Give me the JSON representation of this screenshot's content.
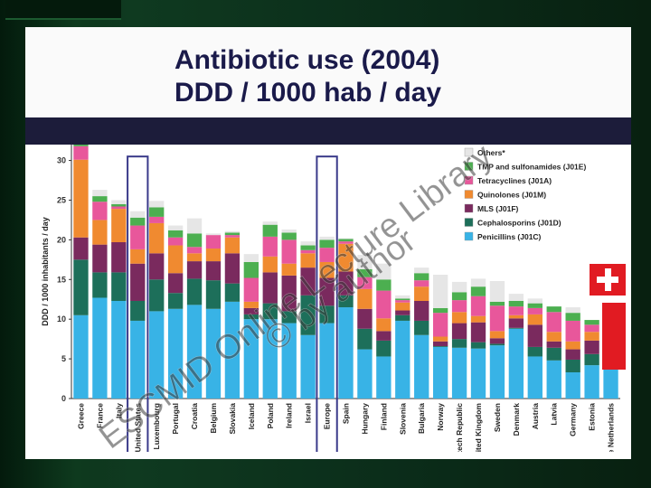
{
  "title": {
    "line1": "Antibiotic use (2004)",
    "line2": "DDD / 1000 hab / day"
  },
  "watermark": {
    "line1": "ESCMID Online Lecture Library",
    "line2": "© by author"
  },
  "colors": {
    "background": "#0b2d1a",
    "title_text": "#1a1a4a",
    "dark_band": "#1c1c3a",
    "highlight_box": "#3a3a8a",
    "flag_red": "#e11b22"
  },
  "chart_data": {
    "type": "bar",
    "stacked": true,
    "ylabel": "DDD / 1000 inhabitants / day",
    "ylim": [
      0,
      32
    ],
    "yticks": [
      0,
      5,
      10,
      15,
      20,
      25,
      30
    ],
    "grid": false,
    "legend_position": "top-right",
    "highlighted_categories": [
      "United States",
      "Europe"
    ],
    "categories": [
      "Greece",
      "France",
      "Italy",
      "United States",
      "Luxembourg",
      "Portugal",
      "Croatia",
      "Belgium",
      "Slovakia",
      "Iceland",
      "Poland",
      "Ireland",
      "Israel",
      "Europe",
      "Spain",
      "Hungary",
      "Finland",
      "Slovenia",
      "Bulgaria",
      "Norway",
      "Czech Republic",
      "United Kingdom",
      "Sweden",
      "Denmark",
      "Austria",
      "Latvia",
      "Germany",
      "Estonia",
      "The Netherlands"
    ],
    "series": [
      {
        "name": "Penicillins (J01C)",
        "color": "#38b3e6",
        "values": [
          10.5,
          12.7,
          12.3,
          9.8,
          11.0,
          11.3,
          11.8,
          11.3,
          12.2,
          10.0,
          10.0,
          9.5,
          8.0,
          9.5,
          11.5,
          6.2,
          5.3,
          9.8,
          8.0,
          6.5,
          6.4,
          6.3,
          6.7,
          8.8,
          5.3,
          4.8,
          3.3,
          4.2,
          3.7
        ]
      },
      {
        "name": "Cephalosporins (J01D)",
        "color": "#1d6f5a",
        "values": [
          7.0,
          3.2,
          3.6,
          2.5,
          4.0,
          2.0,
          3.3,
          3.6,
          2.3,
          0.6,
          2.0,
          1.5,
          5.0,
          2.2,
          1.5,
          2.6,
          2.0,
          0.7,
          1.8,
          0.1,
          1.1,
          0.8,
          0.2,
          0.1,
          1.2,
          1.6,
          1.6,
          1.4,
          0.2
        ]
      },
      {
        "name": "MLS (J01F)",
        "color": "#7a2a5e",
        "values": [
          2.8,
          3.5,
          3.8,
          4.7,
          3.3,
          2.5,
          2.2,
          2.4,
          3.8,
          0.8,
          3.9,
          4.5,
          3.5,
          3.5,
          3.0,
          2.5,
          1.2,
          0.6,
          2.5,
          0.6,
          2.0,
          2.5,
          0.7,
          1.2,
          2.8,
          0.8,
          1.3,
          1.7,
          1.4
        ]
      },
      {
        "name": "Quinolones (J01M)",
        "color": "#f08a30",
        "values": [
          9.8,
          3.1,
          4.2,
          1.8,
          3.8,
          3.5,
          1.0,
          1.6,
          2.0,
          0.8,
          2.0,
          1.5,
          1.8,
          2.0,
          3.5,
          2.5,
          1.6,
          1.0,
          1.8,
          0.6,
          1.4,
          0.8,
          0.9,
          0.4,
          1.3,
          1.2,
          1.0,
          1.1,
          0.8
        ]
      },
      {
        "name": "Tetracyclines (J01A)",
        "color": "#e8579b",
        "values": [
          1.7,
          2.3,
          0.3,
          3.0,
          0.8,
          1.0,
          0.8,
          1.7,
          0.3,
          3.0,
          2.5,
          3.0,
          0.4,
          1.8,
          0.3,
          1.5,
          3.5,
          0.3,
          0.8,
          3.0,
          1.5,
          2.5,
          3.2,
          1.1,
          0.8,
          2.5,
          2.6,
          0.9,
          1.6
        ]
      },
      {
        "name": "TMP and sulfonamides (J01E)",
        "color": "#4caf50",
        "values": [
          0.6,
          0.7,
          0.3,
          1.0,
          1.2,
          0.9,
          1.7,
          0.0,
          0.3,
          2.0,
          1.5,
          0.9,
          0.6,
          1.0,
          0.3,
          1.0,
          1.4,
          0.2,
          0.9,
          0.6,
          1.0,
          1.2,
          0.5,
          0.7,
          0.6,
          0.7,
          1.0,
          0.6,
          0.8
        ]
      },
      {
        "name": "Others*",
        "color": "#e6e6e6",
        "values": [
          0.0,
          0.8,
          0.5,
          0.8,
          0.8,
          0.6,
          1.9,
          0.2,
          0.2,
          1.0,
          0.4,
          0.4,
          0.5,
          0.4,
          0.1,
          1.8,
          2.0,
          0.4,
          0.7,
          4.2,
          1.3,
          1.0,
          2.6,
          0.9,
          0.6,
          0.0,
          0.7,
          0.0,
          1.2
        ]
      }
    ]
  }
}
